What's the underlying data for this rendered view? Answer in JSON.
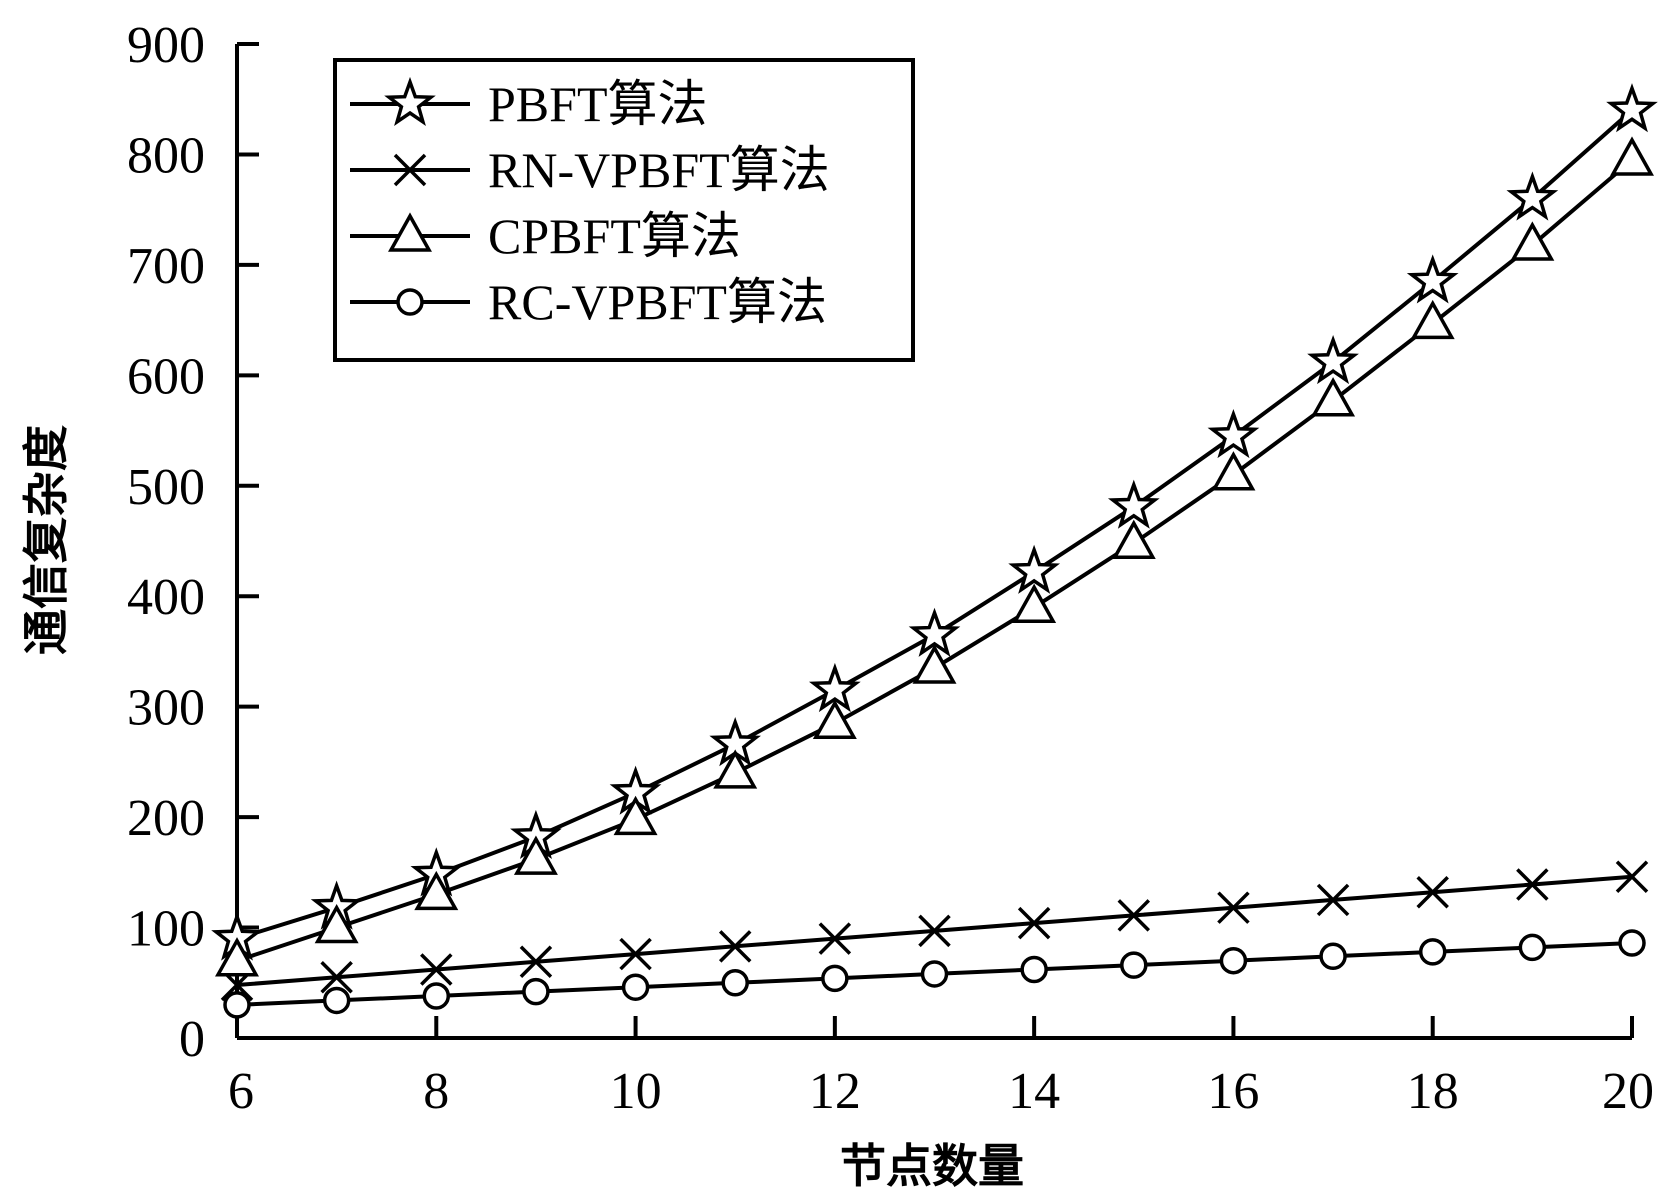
{
  "chart_data": {
    "type": "line",
    "title": "",
    "xlabel": "节点数量",
    "ylabel": "通信复杂度",
    "x": [
      6,
      7,
      8,
      9,
      10,
      11,
      12,
      13,
      14,
      15,
      16,
      17,
      18,
      19,
      20
    ],
    "xlim": [
      6,
      20
    ],
    "ylim": [
      0,
      900
    ],
    "xticks": [
      "6",
      "8",
      "10",
      "12",
      "14",
      "16",
      "18",
      "20"
    ],
    "yticks": [
      "0",
      "100",
      "200",
      "300",
      "400",
      "500",
      "600",
      "700",
      "800",
      "900"
    ],
    "grid": false,
    "legend_position": "top-left",
    "series": [
      {
        "name": "PBFT算法",
        "marker": "star",
        "values": [
          90,
          118,
          148,
          182,
          222,
          266,
          315,
          365,
          422,
          481,
          545,
          612,
          685,
          760,
          840
        ]
      },
      {
        "name": "RN-VPBFT算法",
        "marker": "x",
        "values": [
          48,
          55,
          62,
          69,
          76,
          83,
          90,
          97,
          104,
          111,
          118,
          125,
          132,
          139,
          146
        ]
      },
      {
        "name": "CPBFT算法",
        "marker": "triangle",
        "values": [
          70,
          100,
          130,
          162,
          198,
          240,
          285,
          335,
          390,
          448,
          510,
          577,
          647,
          718,
          795
        ]
      },
      {
        "name": "RC-VPBFT算法",
        "marker": "circle",
        "values": [
          30,
          34,
          38,
          42,
          46,
          50,
          54,
          58,
          62,
          66,
          70,
          74,
          78,
          82,
          86
        ]
      }
    ],
    "colors": {
      "line": "#000000",
      "background": "#ffffff"
    }
  }
}
